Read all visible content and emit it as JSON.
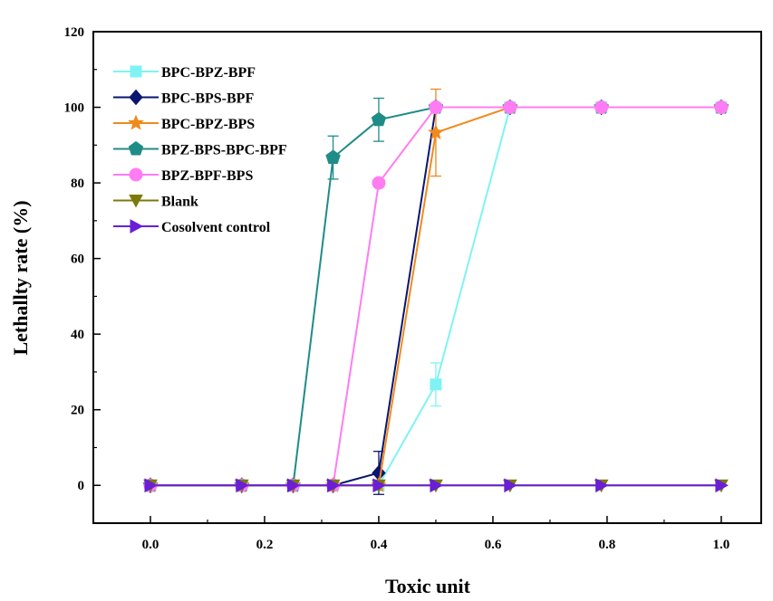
{
  "chart_data": {
    "type": "line",
    "title": "",
    "xlabel": "Toxic unit",
    "ylabel": "Lethallty rate (%)",
    "xlim": [
      -0.1,
      1.07
    ],
    "ylim": [
      -10,
      120
    ],
    "xticks": [
      0.0,
      0.2,
      0.4,
      0.6,
      0.8,
      1.0
    ],
    "xtick_labels": [
      "0.0",
      "0.2",
      "0.4",
      "0.6",
      "0.8",
      "1.0"
    ],
    "yticks": [
      0,
      20,
      40,
      60,
      80,
      100,
      120
    ],
    "ytick_labels": [
      "0",
      "20",
      "40",
      "60",
      "80",
      "100",
      "120"
    ],
    "grid": false,
    "legend_position": "upper-left",
    "x": [
      0.0,
      0.16,
      0.25,
      0.32,
      0.4,
      0.5,
      0.63,
      0.79,
      1.0
    ],
    "series": [
      {
        "name": "BPC-BPZ-BPF",
        "color": "#7ff3f3",
        "marker": "square",
        "values": [
          0,
          0,
          0,
          0,
          0,
          26.7,
          100,
          100,
          100
        ],
        "errors": [
          0,
          0,
          0,
          0,
          0,
          5.7,
          0,
          0,
          0
        ]
      },
      {
        "name": "BPC-BPS-BPF",
        "color": "#0a1570",
        "marker": "diamond",
        "values": [
          0,
          0,
          0,
          0,
          3.3,
          100,
          100,
          100,
          100
        ],
        "errors": [
          0,
          0,
          0,
          0,
          5.7,
          0,
          0,
          0,
          0
        ]
      },
      {
        "name": "BPC-BPZ-BPS",
        "color": "#f08a1d",
        "marker": "star",
        "values": [
          0,
          0,
          0,
          0,
          0,
          93.3,
          100,
          100,
          100
        ],
        "errors": [
          0,
          0,
          0,
          0,
          0,
          11.5,
          0,
          0,
          0
        ]
      },
      {
        "name": "BPZ-BPS-BPC-BPF",
        "color": "#1f8c88",
        "marker": "pentagon",
        "values": [
          0,
          0,
          0,
          86.7,
          96.7,
          100,
          100,
          100,
          100
        ],
        "errors": [
          0,
          0,
          0,
          5.7,
          5.7,
          0,
          0,
          0,
          0
        ]
      },
      {
        "name": "BPZ-BPF-BPS",
        "color": "#ff7cf3",
        "marker": "circle",
        "values": [
          0,
          0,
          0,
          0,
          80,
          100,
          100,
          100,
          100
        ],
        "errors": [
          0,
          0,
          0,
          0,
          0,
          0,
          0,
          0,
          0
        ]
      },
      {
        "name": "Blank",
        "color": "#7d7a0d",
        "marker": "triangle-down",
        "values": [
          0,
          0,
          0,
          0,
          0,
          0,
          0,
          0,
          0
        ],
        "errors": [
          0,
          0,
          0,
          0,
          0,
          0,
          0,
          0,
          0
        ]
      },
      {
        "name": "Cosolvent control",
        "color": "#6a1fd6",
        "marker": "triangle-right",
        "values": [
          0,
          0,
          0,
          0,
          0,
          0,
          0,
          0,
          0
        ],
        "errors": [
          0,
          0,
          0,
          0,
          0,
          0,
          0,
          0,
          0
        ]
      }
    ]
  }
}
